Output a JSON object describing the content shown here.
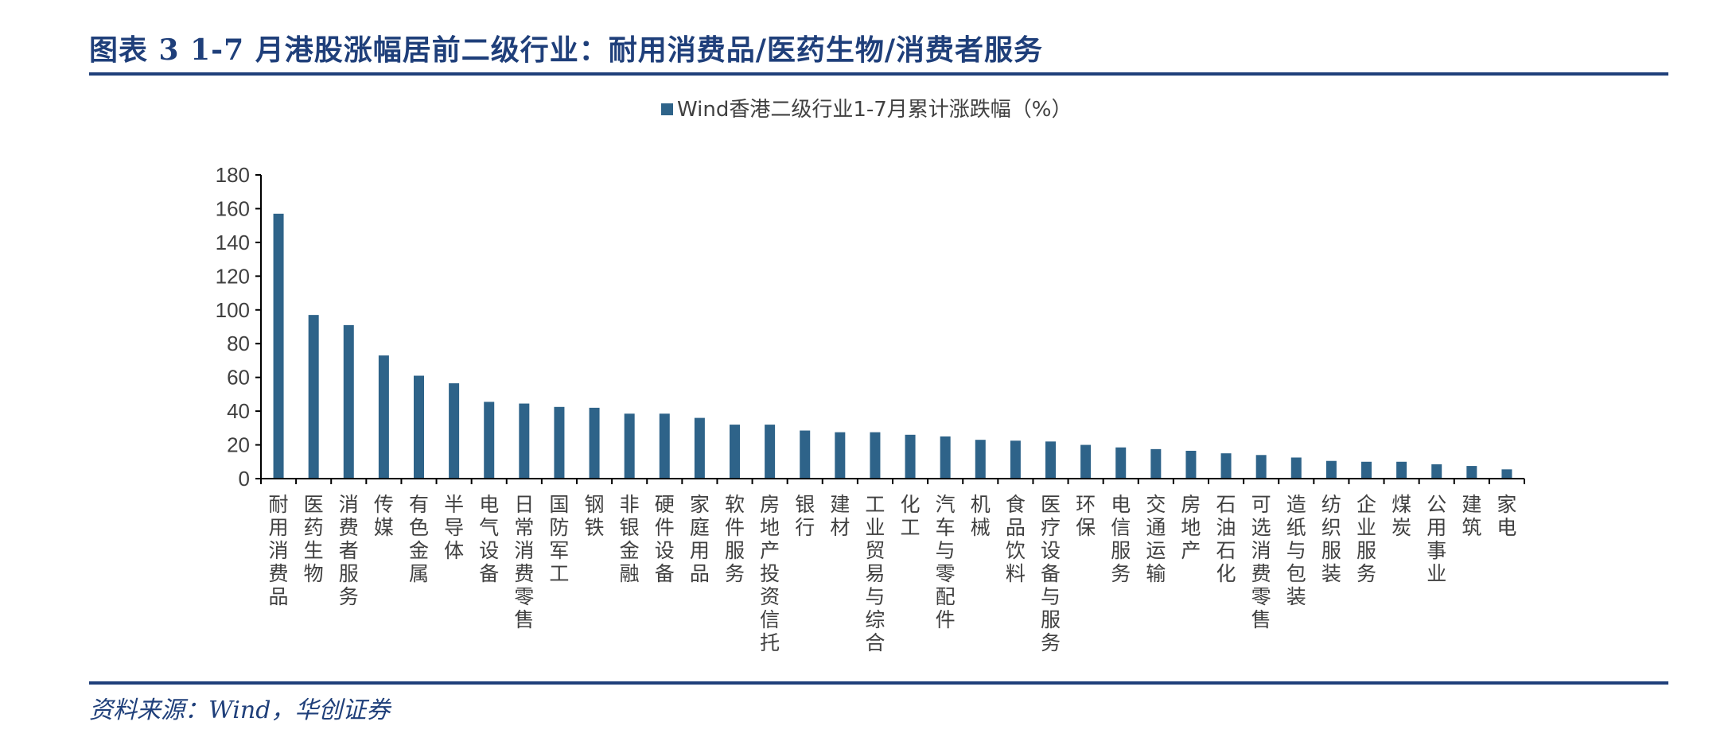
{
  "figure": {
    "title": "图表 3   1-7 月港股涨幅居前二级行业：耐用消费品/医药生物/消费者服务",
    "source": "资料来源：Wind，华创证券"
  },
  "chart_data": {
    "type": "bar",
    "title": "",
    "xlabel": "",
    "ylabel": "",
    "legend": {
      "position": "top-center",
      "entries": [
        "Wind香港二级行业1-7月累计涨跌幅（%）"
      ]
    },
    "ylim": [
      0,
      180
    ],
    "yticks": [
      0,
      20,
      40,
      60,
      80,
      100,
      120,
      140,
      160,
      180
    ],
    "grid": false,
    "bar_color": "#2e6389",
    "axis_color": "#000000",
    "categories": [
      "耐用消费品",
      "医药生物",
      "消费者服务",
      "传媒",
      "有色金属",
      "半导体",
      "电气设备",
      "日常消费零售",
      "国防军工",
      "钢铁",
      "非银金融",
      "硬件设备",
      "家庭用品",
      "软件服务",
      "房地产投资信托",
      "银行",
      "建材",
      "工业贸易与综合",
      "化工",
      "汽车与零配件",
      "机械",
      "食品饮料",
      "医疗设备与服务",
      "环保",
      "电信服务",
      "交通运输",
      "房地产",
      "石油石化",
      "可选消费零售",
      "造纸与包装",
      "纺织服装",
      "企业服务",
      "煤炭",
      "公用事业",
      "建筑",
      "家电"
    ],
    "series": [
      {
        "name": "Wind香港二级行业1-7月累计涨跌幅（%）",
        "values": [
          157,
          97,
          91,
          73,
          61,
          56.5,
          45.5,
          44.5,
          42.5,
          42,
          38.5,
          38.5,
          36,
          32,
          32,
          28.5,
          27.5,
          27.5,
          26,
          25,
          23,
          22.5,
          22,
          20,
          18.5,
          17.5,
          16.5,
          15,
          14,
          12.5,
          10.5,
          10,
          10,
          8.5,
          7.5,
          5.5
        ]
      }
    ]
  }
}
